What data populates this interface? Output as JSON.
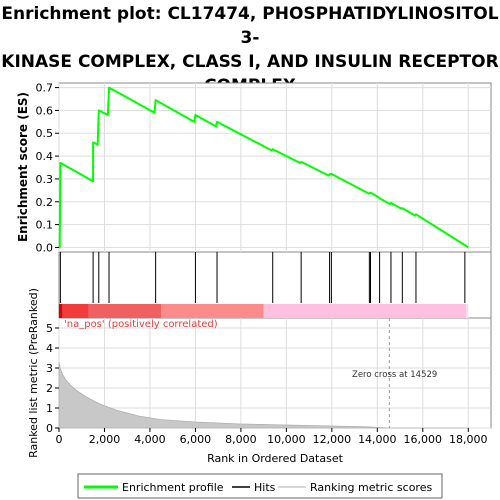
{
  "title_lines": [
    "Enrichment plot: CL17474, PHOSPHATIDYLINOSITOL 3-",
    "KINASE COMPLEX, CLASS I, AND INSULIN RECEPTOR",
    "COMPLEX"
  ],
  "chart_data": [
    {
      "type": "line",
      "panel": "enrichment-score",
      "ylabel": "Enrichment score (ES)",
      "xlim": [
        0,
        19000
      ],
      "ylim": [
        -0.02,
        0.72
      ],
      "yticks": [
        "0.0",
        "0.1",
        "0.2",
        "0.3",
        "0.4",
        "0.5",
        "0.6",
        "0.7"
      ],
      "grid": true,
      "color": "#00ff00",
      "series": [
        {
          "name": "Enrichment profile",
          "points": [
            [
              0,
              0.0
            ],
            [
              30,
              0.0
            ],
            [
              60,
              0.37
            ],
            [
              1500,
              0.29
            ],
            [
              1500,
              0.46
            ],
            [
              1700,
              0.45
            ],
            [
              1750,
              0.6
            ],
            [
              2150,
              0.58
            ],
            [
              2200,
              0.7
            ],
            [
              4200,
              0.59
            ],
            [
              4250,
              0.645
            ],
            [
              5950,
              0.55
            ],
            [
              6000,
              0.58
            ],
            [
              6900,
              0.53
            ],
            [
              6950,
              0.55
            ],
            [
              9350,
              0.425
            ],
            [
              9400,
              0.43
            ],
            [
              10600,
              0.37
            ],
            [
              10650,
              0.375
            ],
            [
              11850,
              0.315
            ],
            [
              11900,
              0.32
            ],
            [
              11980,
              0.322
            ],
            [
              13550,
              0.24
            ],
            [
              13650,
              0.235
            ],
            [
              13700,
              0.24
            ],
            [
              14050,
              0.22
            ],
            [
              14100,
              0.215
            ],
            [
              14550,
              0.19
            ],
            [
              14600,
              0.195
            ],
            [
              15050,
              0.17
            ],
            [
              15100,
              0.172
            ],
            [
              15650,
              0.14
            ],
            [
              15700,
              0.145
            ],
            [
              17850,
              0.01
            ],
            [
              18000,
              0.0
            ]
          ]
        }
      ]
    },
    {
      "type": "scatter",
      "panel": "hits",
      "series": [
        {
          "name": "Hits",
          "x": [
            60,
            1500,
            1750,
            2200,
            4250,
            6000,
            6950,
            9400,
            10650,
            11900,
            11980,
            13650,
            13700,
            14100,
            14600,
            15100,
            15700,
            17850
          ]
        }
      ]
    },
    {
      "type": "area",
      "panel": "ranked-list",
      "xlabel": "Rank in Ordered Dataset",
      "ylabel": "Ranked list metric (PreRanked)",
      "xlim": [
        0,
        19000
      ],
      "ylim": [
        0,
        5.5
      ],
      "xticks": [
        "0",
        "2,000",
        "4,000",
        "6,000",
        "8,000",
        "10,000",
        "12,000",
        "14,000",
        "16,000",
        "18,000"
      ],
      "yticks": [
        "0",
        "1",
        "2",
        "3",
        "4",
        "5"
      ],
      "grid": true,
      "series": [
        {
          "name": "Ranking metric scores",
          "points": [
            [
              0,
              3.3
            ],
            [
              50,
              3.0
            ],
            [
              150,
              2.7
            ],
            [
              300,
              2.4
            ],
            [
              500,
              2.15
            ],
            [
              800,
              1.85
            ],
            [
              1200,
              1.55
            ],
            [
              1800,
              1.2
            ],
            [
              2500,
              0.9
            ],
            [
              3500,
              0.6
            ],
            [
              4500,
              0.42
            ],
            [
              6000,
              0.3
            ],
            [
              8000,
              0.2
            ],
            [
              10000,
              0.15
            ],
            [
              12000,
              0.1
            ],
            [
              13500,
              0.06
            ],
            [
              14529,
              0.0
            ],
            [
              16000,
              0.0
            ],
            [
              18000,
              0.0
            ]
          ]
        }
      ],
      "annotations": {
        "positive_label": "'na_pos' (positively correlated)",
        "zero_cross_label": "Zero cross at 14529",
        "zero_cross_x": 14529
      },
      "bar_segments": [
        {
          "from": 0,
          "to": 150,
          "color": "#dd0000"
        },
        {
          "from": 150,
          "to": 1300,
          "color": "#f23c3c"
        },
        {
          "from": 1300,
          "to": 4500,
          "color": "#f06060"
        },
        {
          "from": 4500,
          "to": 9000,
          "color": "#fc8c8c"
        },
        {
          "from": 9000,
          "to": 17900,
          "color": "#ffc0e0"
        },
        {
          "from": 17900,
          "to": 18000,
          "color": "#ffd9ee"
        }
      ]
    }
  ],
  "legend": {
    "items": [
      {
        "label": "Enrichment profile",
        "color": "#00ff00"
      },
      {
        "label": "Hits",
        "color": "#000000"
      },
      {
        "label": "Ranking metric scores",
        "color": "#cccccc"
      }
    ]
  }
}
